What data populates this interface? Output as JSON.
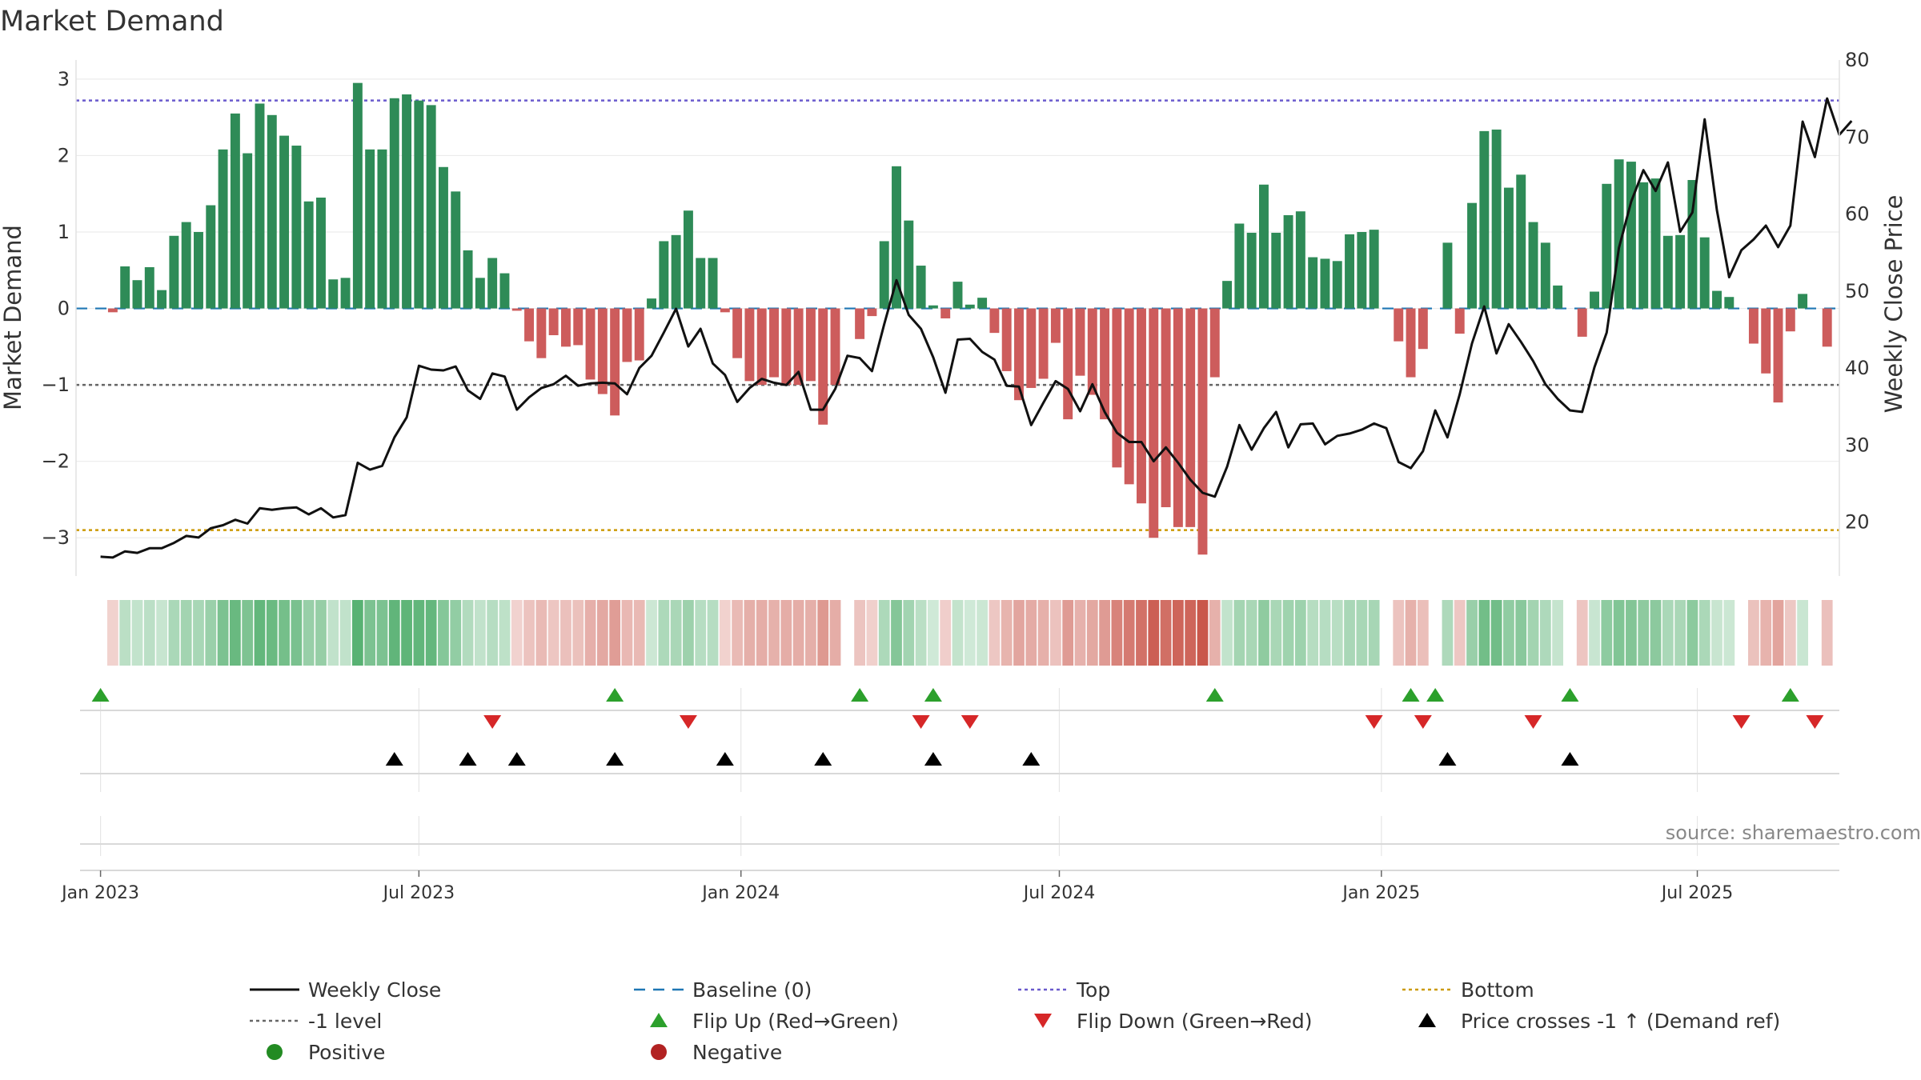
{
  "chart_data": {
    "type": "bar",
    "title": "Market Demand",
    "ylabel": "Market Demand",
    "y2label": "Weekly Close Price",
    "ylim": [
      -3.5,
      3.25
    ],
    "y2lim": [
      13,
      80
    ],
    "yticks": [
      3,
      2,
      1,
      0,
      -1,
      -2,
      -3
    ],
    "yticklabels": [
      "3",
      "2",
      "1",
      "0",
      "−1",
      "−2",
      "−3"
    ],
    "y2ticks": [
      80,
      70,
      60,
      50,
      40,
      30,
      20
    ],
    "y2ticklabels": [
      "80",
      "70",
      "60",
      "50",
      "40",
      "30",
      "20"
    ],
    "week_index_range": [
      -2,
      142
    ],
    "xticks": [
      {
        "label": "Jan 2023",
        "week": 0
      },
      {
        "label": "Jul 2023",
        "week": 26
      },
      {
        "label": "Jan 2024",
        "week": 52.3
      },
      {
        "label": "Jul 2024",
        "week": 78.3
      },
      {
        "label": "Jan 2025",
        "week": 104.6
      },
      {
        "label": "Jul 2025",
        "week": 130.4
      }
    ],
    "reference_lines": {
      "top": 2.72,
      "bottom": -2.9,
      "minus_one": -1,
      "baseline": 0
    },
    "colors": {
      "positive_bar": "#2e8b57",
      "negative_bar": "#cd5c5c",
      "price_line": "#111111",
      "baseline": "#1f77b4",
      "top_line": "#6a5acd",
      "bottom_line": "#cc9a06",
      "minus_one_line": "#666666",
      "flip_up": "#2ca02c",
      "flip_down": "#d62728",
      "cross_marker": "#000000",
      "positive_dot": "#228b22",
      "negative_dot": "#b22222",
      "strip_positive": "#2e9e4f",
      "strip_negative": "#c0392b"
    },
    "demand": [
      0.0,
      -0.05,
      0.55,
      0.37,
      0.54,
      0.24,
      0.95,
      1.13,
      1.0,
      1.35,
      2.08,
      2.55,
      2.03,
      2.68,
      2.53,
      2.26,
      2.13,
      1.4,
      1.45,
      0.38,
      0.4,
      2.95,
      2.08,
      2.08,
      2.75,
      2.8,
      2.72,
      2.66,
      1.85,
      1.53,
      0.76,
      0.4,
      0.66,
      0.46,
      -0.03,
      -0.43,
      -0.65,
      -0.35,
      -0.5,
      -0.48,
      -0.93,
      -1.12,
      -1.4,
      -0.7,
      -0.68,
      0.13,
      0.88,
      0.96,
      1.28,
      0.66,
      0.66,
      -0.05,
      -0.65,
      -0.95,
      -1.0,
      -0.9,
      -1.0,
      -1.0,
      -0.95,
      -1.52,
      -1.0,
      0.0,
      -0.4,
      -0.1,
      0.88,
      1.86,
      1.15,
      0.56,
      0.04,
      -0.13,
      0.35,
      0.05,
      0.14,
      -0.32,
      -0.82,
      -1.2,
      -1.04,
      -0.92,
      -0.45,
      -1.45,
      -0.88,
      -1.13,
      -1.45,
      -2.08,
      -2.3,
      -2.55,
      -3.0,
      -2.6,
      -2.86,
      -2.86,
      -3.22,
      -0.9,
      0.36,
      1.11,
      0.99,
      1.62,
      0.99,
      1.22,
      1.27,
      0.67,
      0.65,
      0.62,
      0.97,
      1.0,
      1.03,
      0.0,
      -0.43,
      -0.9,
      -0.53,
      0.0,
      0.86,
      -0.33,
      1.38,
      2.32,
      2.34,
      1.58,
      1.75,
      1.13,
      0.86,
      0.3,
      0.0,
      -0.37,
      0.22,
      1.63,
      1.95,
      1.92,
      1.65,
      1.7,
      0.95,
      0.96,
      1.68,
      0.93,
      0.23,
      0.15,
      0.0,
      -0.46,
      -0.85,
      -1.23,
      -0.3,
      0.19,
      0.0,
      -0.5
    ],
    "weekly_close": [
      15.5,
      15.4,
      16.2,
      16.0,
      16.6,
      16.6,
      17.3,
      18.2,
      18.0,
      19.2,
      19.6,
      20.3,
      19.8,
      21.8,
      21.6,
      21.8,
      21.9,
      21.0,
      21.8,
      20.6,
      20.9,
      27.7,
      26.8,
      27.3,
      31.0,
      33.6,
      40.3,
      39.8,
      39.7,
      40.2,
      37.1,
      36.0,
      39.3,
      38.9,
      34.6,
      36.2,
      37.4,
      37.9,
      39.0,
      37.7,
      38.0,
      38.1,
      38.0,
      36.6,
      40.0,
      41.6,
      44.6,
      47.7,
      42.8,
      45.1,
      40.6,
      39.1,
      35.6,
      37.4,
      38.6,
      38.1,
      37.8,
      39.5,
      34.6,
      34.6,
      37.3,
      41.6,
      41.3,
      39.6,
      45.7,
      51.4,
      46.9,
      45.1,
      41.4,
      36.8,
      43.7,
      43.8,
      42.1,
      41.1,
      37.7,
      37.6,
      32.6,
      35.5,
      38.3,
      37.3,
      34.4,
      37.9,
      34.3,
      31.6,
      30.4,
      30.4,
      27.9,
      29.7,
      27.7,
      25.5,
      23.8,
      23.3,
      27.2,
      32.6,
      29.4,
      32.2,
      34.3,
      29.7,
      32.7,
      32.8,
      30.1,
      31.2,
      31.5,
      32.0,
      32.8,
      32.2,
      27.8,
      27.0,
      29.2,
      34.5,
      31.0,
      36.6,
      43.2,
      48.0,
      41.9,
      45.7,
      43.4,
      40.9,
      37.9,
      36.0,
      34.5,
      34.3,
      40.1,
      44.6,
      55.6,
      61.6,
      65.7,
      63.0,
      66.7,
      57.7,
      60.2,
      72.3,
      60.5,
      51.8,
      55.3,
      56.7,
      58.5,
      55.7,
      58.5,
      72.0,
      67.4,
      75.0,
      70.3,
      72.1
    ],
    "flip_up_weeks": [
      0,
      42,
      62,
      68,
      91,
      107,
      109,
      120,
      138
    ],
    "flip_down_weeks": [
      32,
      48,
      67,
      71,
      104,
      108,
      117,
      134,
      140
    ],
    "price_cross_weeks": [
      24,
      30,
      34,
      42,
      51,
      59,
      68,
      76,
      110,
      120
    ],
    "source_text": "source: sharemaestro.com",
    "legend": [
      {
        "label": "Weekly Close",
        "kind": "line",
        "color": "#111111"
      },
      {
        "label": "Baseline (0)",
        "kind": "dashed",
        "color": "#1f77b4"
      },
      {
        "label": "Top",
        "kind": "dotted",
        "color": "#6a5acd"
      },
      {
        "label": "Bottom",
        "kind": "dotted",
        "color": "#cc9a06"
      },
      {
        "label": "-1 level",
        "kind": "dotted",
        "color": "#666666"
      },
      {
        "label": "Flip Up (Red→Green)",
        "kind": "tri-up",
        "color": "#2ca02c"
      },
      {
        "label": "Flip Down (Green→Red)",
        "kind": "tri-down",
        "color": "#d62728"
      },
      {
        "label": "Price crosses -1 ↑ (Demand ref)",
        "kind": "tri-up",
        "color": "#000000"
      },
      {
        "label": "Positive",
        "kind": "dot",
        "color": "#228b22"
      },
      {
        "label": "Negative",
        "kind": "dot",
        "color": "#b22222"
      }
    ]
  }
}
